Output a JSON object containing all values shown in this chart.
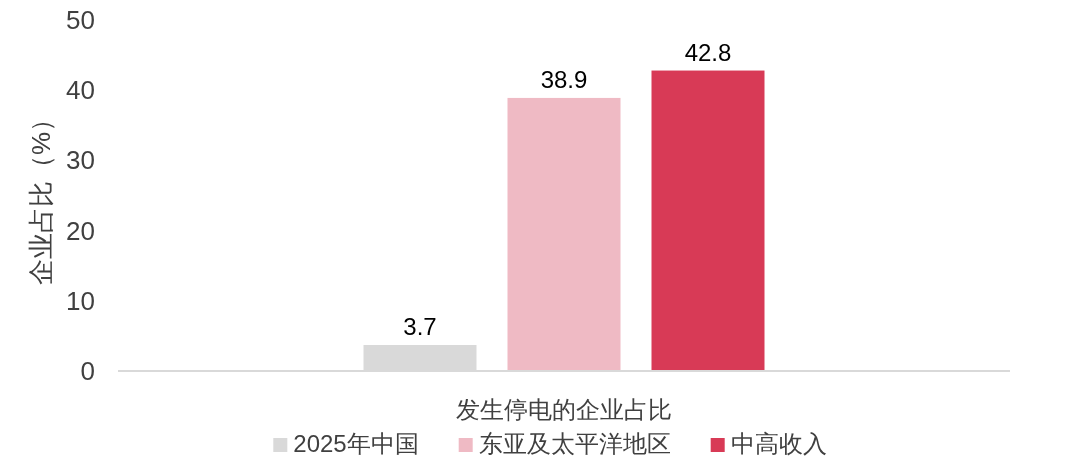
{
  "chart_data": {
    "type": "bar",
    "categories": [
      "发生停电的企业占比"
    ],
    "ylabel": "企业占比（%）",
    "series": [
      {
        "name": "2025年中国",
        "color": "#d9d9d9",
        "values": [
          3.7
        ]
      },
      {
        "name": "东亚及太平洋地区",
        "color": "#efbac4",
        "values": [
          38.9
        ]
      },
      {
        "name": "中高收入",
        "color": "#d83a56",
        "values": [
          42.8
        ]
      }
    ],
    "ylim": [
      0,
      50
    ],
    "yticks": [
      0,
      10,
      20,
      30,
      40,
      50
    ],
    "grid": false,
    "legend": "bottom",
    "data_labels": true
  }
}
